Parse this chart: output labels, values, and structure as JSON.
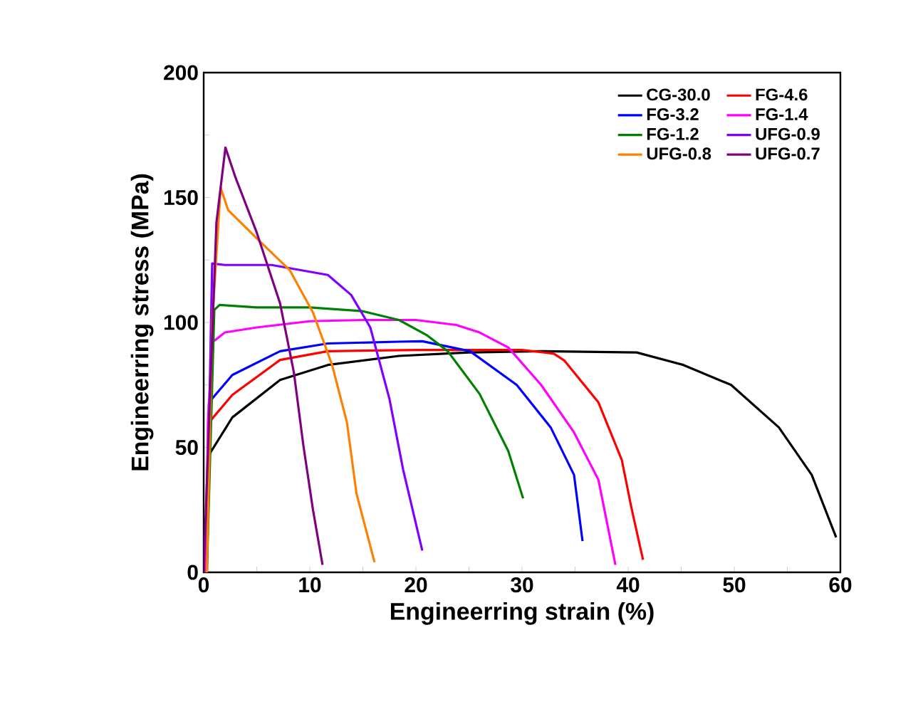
{
  "chart_data": {
    "type": "line",
    "xlabel": "Engineerring strain (%)",
    "ylabel": "Engineerring stress (MPa)",
    "xlim": [
      0,
      60
    ],
    "ylim": [
      0,
      200
    ],
    "xticks": [
      0,
      {
        "value": 5,
        "label": null
      },
      10,
      {
        "value": 15,
        "label": null
      },
      20,
      {
        "value": 25,
        "label": null
      },
      30,
      {
        "value": 35,
        "label": null
      },
      40,
      {
        "value": 45,
        "label": null
      },
      50,
      {
        "value": 55,
        "label": null
      },
      60
    ],
    "yticks": [
      0,
      {
        "value": 25,
        "label": null
      },
      50,
      {
        "value": 75,
        "label": null
      },
      100,
      {
        "value": 125,
        "label": null
      },
      150,
      {
        "value": 175,
        "label": null
      },
      200
    ],
    "legend": "top right",
    "grid": false,
    "marker": "none",
    "line_style": "solid",
    "series": [
      {
        "name": "CG-30.0",
        "color": "#000000",
        "x": [
          0.2,
          0.3,
          0.5,
          2.7,
          7.2,
          11.7,
          18.4,
          25,
          31.8,
          40.8,
          45.2,
          49.7,
          54.2,
          57.3,
          59.6
        ],
        "values": [
          0,
          35,
          47,
          62,
          77,
          83,
          86.6,
          88,
          88.5,
          88,
          83,
          75,
          58,
          39,
          14
        ]
      },
      {
        "name": "FG-4.6",
        "color": "#ff0000",
        "x": [
          0.2,
          0.5,
          2.7,
          7.2,
          11.7,
          20,
          25,
          30,
          33,
          34,
          37.2,
          39.4,
          40.3,
          41.4
        ],
        "values": [
          0,
          60,
          71,
          85,
          88.5,
          89,
          89,
          89,
          87.5,
          84.7,
          68,
          45,
          26,
          5
        ]
      },
      {
        "name": "FG-3.2",
        "color": "#0000ff",
        "x": [
          0.2,
          0.5,
          2.7,
          7.2,
          11.7,
          18.4,
          20.6,
          25.1,
          29.5,
          32.7,
          34.9,
          35.7
        ],
        "values": [
          0,
          68,
          79,
          88.5,
          91.6,
          92.3,
          92.5,
          88.5,
          75,
          58,
          39,
          12.5
        ]
      },
      {
        "name": "FG-1.4",
        "color": "#ff00ff",
        "x": [
          0.2,
          0.4,
          0.8,
          2,
          5,
          10,
          15,
          20,
          23.8,
          26,
          28.7,
          31.8,
          34.9,
          37.2,
          38,
          38.8
        ],
        "values": [
          0,
          60,
          92,
          96,
          98,
          100.5,
          101,
          101,
          99,
          96,
          90,
          75,
          56,
          37,
          20,
          3
        ]
      },
      {
        "name": "FG-1.2",
        "color": "#008000",
        "x": [
          0.3,
          1,
          1.5,
          5,
          10,
          15,
          18.4,
          21,
          23,
          26,
          28.7,
          30.1
        ],
        "values": [
          0,
          105,
          107,
          106,
          106,
          104.5,
          101,
          95,
          88.5,
          71.4,
          48.6,
          29.6
        ]
      },
      {
        "name": "UFG-0.9",
        "color": "#8000ff",
        "x": [
          0.3,
          0.6,
          0.8,
          2,
          6.4,
          11.7,
          13.9,
          15.7,
          17.5,
          18.8,
          20.6
        ],
        "values": [
          0,
          80,
          123.6,
          123,
          123,
          119,
          111,
          98,
          69.5,
          41,
          8.7
        ]
      },
      {
        "name": "UFG-0.8",
        "color": "#ff8000",
        "x": [
          0.3,
          0.8,
          1.6,
          2.3,
          5.4,
          8.1,
          10.3,
          12.1,
          13.5,
          14.4,
          16.1
        ],
        "values": [
          0,
          100,
          154,
          145,
          132,
          121,
          104,
          83,
          60,
          31.5,
          4
        ]
      },
      {
        "name": "UFG-0.7",
        "color": "#800080",
        "x": [
          0,
          0.5,
          1.2,
          2.05,
          3,
          5,
          7.2,
          8.5,
          9.4,
          10.3,
          11.2
        ],
        "values": [
          0,
          60,
          140,
          170,
          158,
          136,
          107.6,
          80,
          50.6,
          25,
          3
        ]
      }
    ]
  }
}
